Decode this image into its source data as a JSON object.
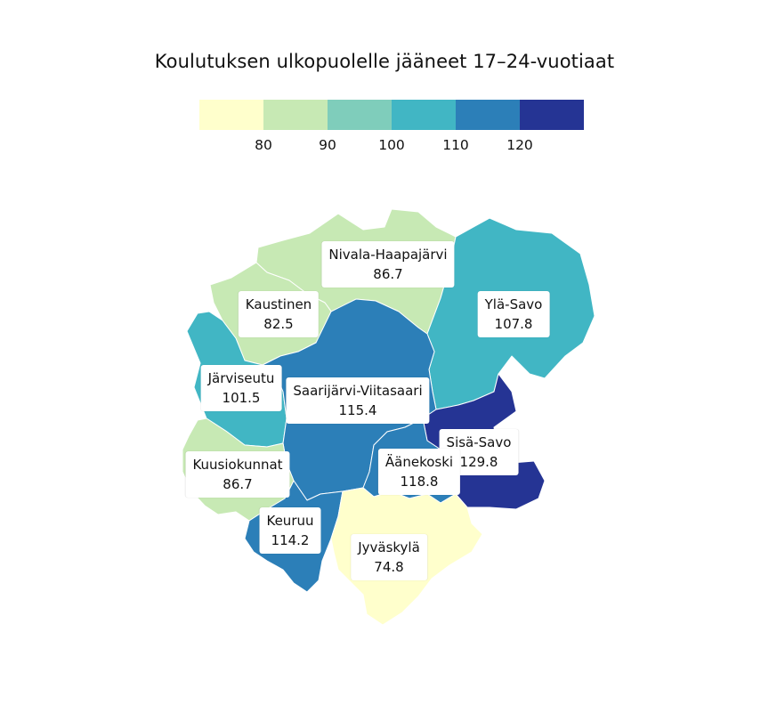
{
  "title": "Koulutuksen ulkopuolelle jääneet 17–24-vuotiaat",
  "legend": {
    "colors": [
      "#ffffcc",
      "#c7e9b4",
      "#7fcdbb",
      "#41b6c4",
      "#2c7fb8",
      "#253494"
    ],
    "ticks": [
      "80",
      "90",
      "100",
      "110",
      "120"
    ]
  },
  "chart_data": {
    "type": "choropleth",
    "title": "Koulutuksen ulkopuolelle jääneet 17–24-vuotiaat",
    "scale_breaks": [
      80,
      90,
      100,
      110,
      120
    ],
    "regions": [
      {
        "name": "Nivala-Haapajärvi",
        "value": "86.7"
      },
      {
        "name": "Kaustinen",
        "value": "82.5"
      },
      {
        "name": "Ylä-Savo",
        "value": "107.8"
      },
      {
        "name": "Järviseutu",
        "value": "101.5"
      },
      {
        "name": "Saarijärvi-Viitasaari",
        "value": "115.4"
      },
      {
        "name": "Sisä-Savo",
        "value": "129.8"
      },
      {
        "name": "Kuusiokunnat",
        "value": "86.7"
      },
      {
        "name": "Äänekoski",
        "value": "118.8"
      },
      {
        "name": "Keuruu",
        "value": "114.2"
      },
      {
        "name": "Jyväskylä",
        "value": "74.8"
      }
    ]
  }
}
